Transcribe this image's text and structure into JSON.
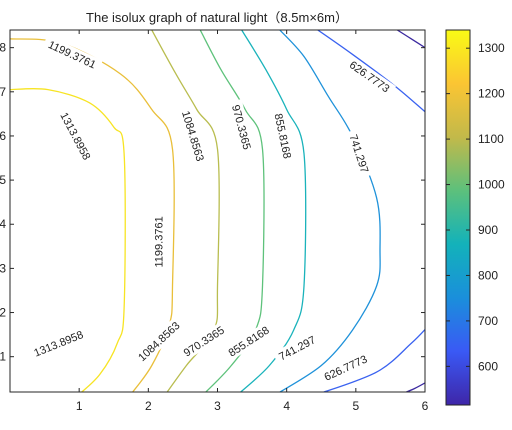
{
  "chart_data": {
    "type": "contour",
    "title": "The isolux graph of natural light（8.5m×6m）",
    "x_ticks": [
      1,
      2,
      3,
      4,
      5,
      6
    ],
    "y_ticks": [
      1,
      2,
      3,
      4,
      5,
      6,
      7,
      8
    ],
    "xlim": [
      0,
      6
    ],
    "ylim": [
      0.2,
      8.4
    ],
    "colorbar": {
      "ticks": [
        600,
        700,
        800,
        900,
        1000,
        1100,
        1200,
        1300
      ],
      "range": [
        515,
        1340
      ],
      "colors": [
        "#3e26a8",
        "#3a59f5",
        "#1a8fdb",
        "#13b2ba",
        "#5cc07c",
        "#c2b94a",
        "#fbc533",
        "#f9fb15"
      ]
    },
    "levels": [
      {
        "value": 1313.8958,
        "color": "#f7e423",
        "points": [
          [
            1.0,
            0.15
          ],
          [
            1.3,
            0.6
          ],
          [
            1.55,
            1.3
          ],
          [
            1.65,
            2.1
          ],
          [
            1.65,
            5.6
          ],
          [
            1.5,
            6.2
          ],
          [
            1.15,
            6.75
          ],
          [
            0.55,
            7.05
          ],
          [
            0.0,
            7.05
          ]
        ],
        "labels": [
          {
            "text": "1313.8958",
            "x": 0.7,
            "y": 1.3,
            "angle": -22
          },
          {
            "text": "1313.8958",
            "x": 0.95,
            "y": 6.0,
            "angle": 62
          }
        ]
      },
      {
        "value": 1199.3761,
        "color": "#e9bf3a",
        "points": [
          [
            1.75,
            0.15
          ],
          [
            2.05,
            0.8
          ],
          [
            2.3,
            1.7
          ],
          [
            2.35,
            2.6
          ],
          [
            2.35,
            5.7
          ],
          [
            2.05,
            6.6
          ],
          [
            1.6,
            7.4
          ],
          [
            0.75,
            8.1
          ],
          [
            0.0,
            8.2
          ]
        ],
        "labels": [
          {
            "text": "1199.3761",
            "x": 2.15,
            "y": 3.6,
            "angle": -90
          },
          {
            "text": "1199.3761",
            "x": 0.9,
            "y": 7.85,
            "angle": 25
          }
        ]
      },
      {
        "value": 1084.8563,
        "color": "#b9bd4f",
        "points": [
          [
            2.25,
            0.15
          ],
          [
            2.55,
            0.8
          ],
          [
            2.95,
            1.6
          ],
          [
            3.0,
            2.6
          ],
          [
            3.0,
            5.7
          ],
          [
            2.7,
            6.6
          ],
          [
            2.4,
            7.4
          ],
          [
            2.05,
            8.4
          ]
        ],
        "labels": [
          {
            "text": "1084.8563",
            "x": 2.15,
            "y": 1.35,
            "angle": -43
          },
          {
            "text": "1084.8563",
            "x": 2.65,
            "y": 6.0,
            "angle": 73
          }
        ]
      },
      {
        "value": 970.3365,
        "color": "#5ec27b",
        "points": [
          [
            2.8,
            0.15
          ],
          [
            3.2,
            0.8
          ],
          [
            3.55,
            1.6
          ],
          [
            3.65,
            2.6
          ],
          [
            3.65,
            5.7
          ],
          [
            3.4,
            6.6
          ],
          [
            3.05,
            7.5
          ],
          [
            2.75,
            8.4
          ]
        ],
        "labels": [
          {
            "text": "970.3365",
            "x": 2.8,
            "y": 1.35,
            "angle": -33
          },
          {
            "text": "970.3365",
            "x": 3.35,
            "y": 6.2,
            "angle": 75
          }
        ]
      },
      {
        "value": 855.8168,
        "color": "#1ab3bb",
        "points": [
          [
            3.3,
            0.15
          ],
          [
            3.75,
            0.8
          ],
          [
            4.1,
            1.6
          ],
          [
            4.25,
            2.6
          ],
          [
            4.25,
            5.6
          ],
          [
            4.0,
            6.6
          ],
          [
            3.7,
            7.5
          ],
          [
            3.35,
            8.4
          ]
        ],
        "labels": [
          {
            "text": "855.8168",
            "x": 3.45,
            "y": 1.35,
            "angle": -33
          },
          {
            "text": "855.8168",
            "x": 3.95,
            "y": 6.0,
            "angle": 78
          }
        ]
      },
      {
        "value": 741.297,
        "color": "#1f92da",
        "points": [
          [
            3.85,
            0.15
          ],
          [
            4.5,
            0.8
          ],
          [
            4.95,
            1.6
          ],
          [
            5.3,
            2.6
          ],
          [
            5.35,
            3.4
          ],
          [
            5.3,
            4.6
          ],
          [
            4.95,
            6.0
          ],
          [
            4.6,
            6.9
          ],
          [
            4.25,
            7.8
          ],
          [
            3.9,
            8.4
          ]
        ],
        "labels": [
          {
            "text": "741.297",
            "x": 4.15,
            "y": 1.2,
            "angle": -28
          },
          {
            "text": "741.297",
            "x": 5.05,
            "y": 5.6,
            "angle": 72
          }
        ]
      },
      {
        "value": 626.7773,
        "color": "#3a62f0",
        "points": [
          [
            4.45,
            0.15
          ],
          [
            5.3,
            0.65
          ],
          [
            5.8,
            1.3
          ],
          [
            6.05,
            1.7
          ]
        ],
        "labels": [
          {
            "text": "626.7773",
            "x": 4.85,
            "y": 0.75,
            "angle": -25
          }
        ]
      },
      {
        "value": 626.7773,
        "color": "#3a62f0",
        "points": [
          [
            4.45,
            8.4
          ],
          [
            4.95,
            7.85
          ],
          [
            5.55,
            7.15
          ],
          [
            6.0,
            6.55
          ]
        ],
        "labels": [
          {
            "text": "626.7773",
            "x": 5.2,
            "y": 7.35,
            "angle": 35
          }
        ]
      },
      {
        "value": 512,
        "color": "#3c2aa0",
        "points": [
          [
            5.65,
            0.15
          ],
          [
            5.85,
            0.28
          ],
          [
            6.05,
            0.45
          ]
        ],
        "labels": []
      },
      {
        "value": 512,
        "color": "#3c2aa0",
        "points": [
          [
            5.6,
            8.4
          ],
          [
            5.8,
            8.2
          ],
          [
            6.05,
            7.95
          ]
        ],
        "labels": []
      }
    ]
  }
}
